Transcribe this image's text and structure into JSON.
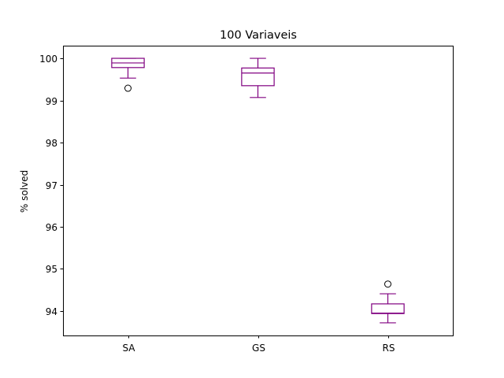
{
  "chart_data": {
    "type": "box",
    "title": "100 Variaveis",
    "xlabel": "",
    "ylabel": "% solved",
    "ylim": [
      93.42,
      100.3
    ],
    "yticks": [
      94,
      95,
      96,
      97,
      98,
      99,
      100
    ],
    "grid": false,
    "color": "#800080",
    "categories": [
      "SA",
      "GS",
      "RS"
    ],
    "boxes": [
      {
        "name": "SA",
        "whisker_low": 99.53,
        "q1": 99.78,
        "median": 99.89,
        "q3": 100.0,
        "whisker_high": 100.0,
        "outliers": [
          99.29
        ]
      },
      {
        "name": "GS",
        "whisker_low": 99.07,
        "q1": 99.35,
        "median": 99.65,
        "q3": 99.77,
        "whisker_high": 100.0,
        "outliers": []
      },
      {
        "name": "RS",
        "whisker_low": 93.72,
        "q1": 93.94,
        "median": 93.95,
        "q3": 94.17,
        "whisker_high": 94.41,
        "outliers": [
          94.64
        ]
      }
    ]
  }
}
